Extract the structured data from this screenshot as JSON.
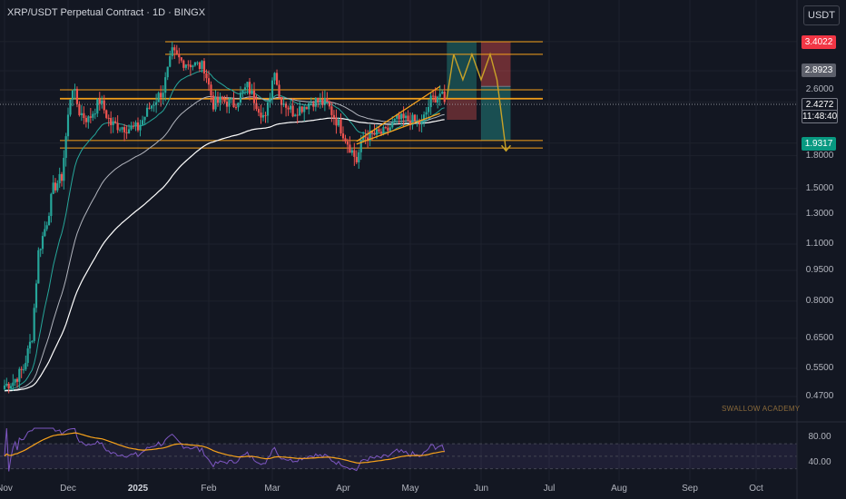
{
  "header": {
    "title": "XRP/USDT Perpetual Contract · 1D · BINGX",
    "unit_button": "USDT",
    "watermark": "SWALLOW ACADEMY"
  },
  "colors": {
    "background": "#131722",
    "bull": "#26a69a",
    "bear": "#ef5350",
    "zone_line": "#f7a21b",
    "ema_fast": "#26a69a",
    "ema_mid": "#b2b5be",
    "ema_slow": "#ffffff",
    "rsi": "#7e57c2",
    "rsi_ma": "#f7a21b",
    "target_badge": "#f23645",
    "stop_badge": "#089981"
  },
  "price_badges": {
    "target": "3.4022",
    "resistance": "2.8923",
    "current_price": "2.4272",
    "countdown": "11:48:40",
    "stop": "1.9317"
  },
  "chart_data": {
    "type": "candlestick",
    "y_scale": "log",
    "ylim": [
      0.43,
      3.9
    ],
    "y_ticks": [
      "3.4022",
      "2.8923",
      "2.6000",
      "2.4272",
      "1.9317",
      "1.8000",
      "1.5000",
      "1.3000",
      "1.1000",
      "0.9500",
      "0.8000",
      "0.6500",
      "0.5500",
      "0.4700"
    ],
    "x_ticks": [
      "Nov",
      "Dec",
      "2025",
      "Feb",
      "Mar",
      "Apr",
      "May",
      "Jun",
      "Jul",
      "Aug",
      "Sep",
      "Oct"
    ],
    "x_range": [
      "2024-11-01",
      "2025-10-31"
    ],
    "anchor_closes": [
      [
        "2024-11-01",
        0.5
      ],
      [
        "2024-11-05",
        0.51
      ],
      [
        "2024-11-10",
        0.55
      ],
      [
        "2024-11-14",
        0.66
      ],
      [
        "2024-11-17",
        1.05
      ],
      [
        "2024-11-21",
        1.25
      ],
      [
        "2024-11-24",
        1.5
      ],
      [
        "2024-11-28",
        1.6
      ],
      [
        "2024-12-02",
        2.5
      ],
      [
        "2024-12-03",
        2.65
      ],
      [
        "2024-12-06",
        2.3
      ],
      [
        "2024-12-10",
        2.2
      ],
      [
        "2024-12-15",
        2.45
      ],
      [
        "2024-12-20",
        2.15
      ],
      [
        "2024-12-28",
        2.1
      ],
      [
        "2025-01-01",
        2.1
      ],
      [
        "2025-01-06",
        2.35
      ],
      [
        "2025-01-12",
        2.6
      ],
      [
        "2025-01-16",
        3.2
      ],
      [
        "2025-01-20",
        3.05
      ],
      [
        "2025-01-25",
        3.0
      ],
      [
        "2025-01-30",
        2.95
      ],
      [
        "2025-02-03",
        2.4
      ],
      [
        "2025-02-07",
        2.45
      ],
      [
        "2025-02-12",
        2.4
      ],
      [
        "2025-02-18",
        2.65
      ],
      [
        "2025-02-26",
        2.2
      ],
      [
        "2025-03-02",
        2.95
      ],
      [
        "2025-03-04",
        2.5
      ],
      [
        "2025-03-10",
        2.3
      ],
      [
        "2025-03-19",
        2.45
      ],
      [
        "2025-03-25",
        2.4
      ],
      [
        "2025-03-31",
        2.1
      ],
      [
        "2025-04-07",
        1.75
      ],
      [
        "2025-04-10",
        2.0
      ],
      [
        "2025-04-20",
        2.05
      ],
      [
        "2025-04-25",
        2.2
      ],
      [
        "2025-05-01",
        2.2
      ],
      [
        "2025-05-06",
        2.15
      ],
      [
        "2025-05-10",
        2.45
      ],
      [
        "2025-05-14",
        2.55
      ],
      [
        "2025-05-16",
        2.43
      ]
    ],
    "horizontal_levels": [
      3.4,
      3.17,
      2.6,
      2.48,
      2.47,
      1.96,
      1.88
    ],
    "rising_wedge": {
      "upper": [
        [
          "2025-04-07",
          1.95
        ],
        [
          "2025-05-14",
          2.65
        ]
      ],
      "lower": [
        [
          "2025-04-07",
          1.92
        ],
        [
          "2025-05-14",
          2.28
        ]
      ]
    },
    "long_position": {
      "from": "2025-05-17",
      "to": "2025-05-30",
      "entry": 2.47,
      "target": 3.4
    },
    "short_position": {
      "from": "2025-06-01",
      "to": "2025-06-14",
      "entry": 2.65,
      "target": 1.96,
      "stop": 3.4
    },
    "projection": [
      [
        "2025-05-17",
        2.48
      ],
      [
        "2025-05-20",
        3.17
      ],
      [
        "2025-05-24",
        2.75
      ],
      [
        "2025-05-28",
        3.17
      ],
      [
        "2025-06-01",
        2.75
      ],
      [
        "2025-06-05",
        3.17
      ],
      [
        "2025-06-08",
        2.75
      ],
      [
        "2025-06-12",
        1.85
      ]
    ],
    "rsi_panel": {
      "ylim": [
        25,
        95
      ],
      "ticks": [
        "80.00",
        "40.00"
      ],
      "band": [
        70,
        30
      ]
    }
  }
}
